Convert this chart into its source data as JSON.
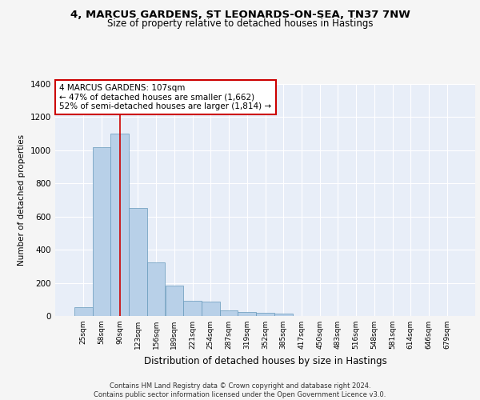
{
  "title1": "4, MARCUS GARDENS, ST LEONARDS-ON-SEA, TN37 7NW",
  "title2": "Size of property relative to detached houses in Hastings",
  "xlabel": "Distribution of detached houses by size in Hastings",
  "ylabel": "Number of detached properties",
  "footer": "Contains HM Land Registry data © Crown copyright and database right 2024.\nContains public sector information licensed under the Open Government Licence v3.0.",
  "bar_labels": [
    "25sqm",
    "58sqm",
    "90sqm",
    "123sqm",
    "156sqm",
    "189sqm",
    "221sqm",
    "254sqm",
    "287sqm",
    "319sqm",
    "352sqm",
    "385sqm",
    "417sqm",
    "450sqm",
    "483sqm",
    "516sqm",
    "548sqm",
    "581sqm",
    "614sqm",
    "646sqm",
    "679sqm"
  ],
  "bar_values": [
    55,
    1020,
    1100,
    650,
    325,
    185,
    90,
    85,
    35,
    25,
    20,
    15,
    0,
    0,
    0,
    0,
    0,
    0,
    0,
    0,
    0
  ],
  "bar_color": "#b8d0e8",
  "bar_edge_color": "#6699bb",
  "background_color": "#e8eef8",
  "grid_color": "#ffffff",
  "annotation_text": "4 MARCUS GARDENS: 107sqm\n← 47% of detached houses are smaller (1,662)\n52% of semi-detached houses are larger (1,814) →",
  "annotation_box_color": "#ffffff",
  "annotation_box_edge": "#cc0000",
  "ylim": [
    0,
    1400
  ],
  "yticks": [
    0,
    200,
    400,
    600,
    800,
    1000,
    1200,
    1400
  ],
  "fig_bg": "#f5f5f5",
  "title1_fontsize": 9.5,
  "title2_fontsize": 8.5
}
